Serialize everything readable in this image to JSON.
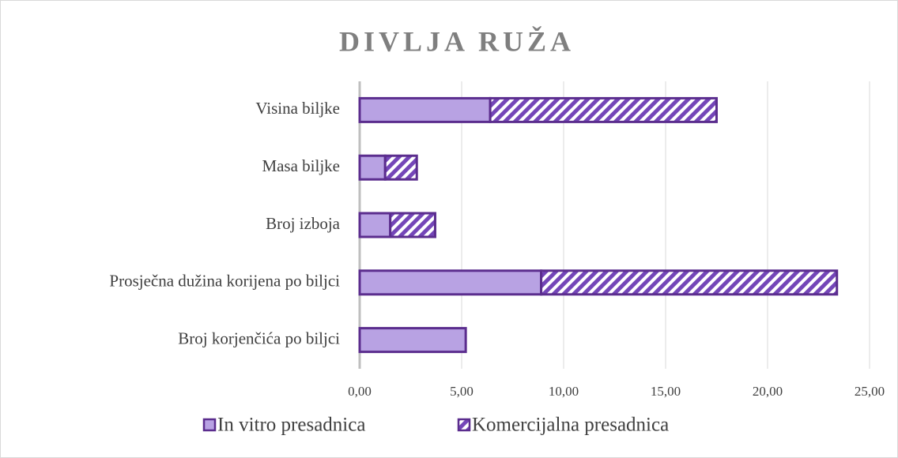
{
  "chart_data": {
    "type": "stacked_barh",
    "title": "DIVLJA RUŽA",
    "categories": [
      "Visina biljke",
      "Masa biljke",
      "Broj izboja",
      "Prosječna dužina korijena po biljci",
      "Broj korjenčića po biljci"
    ],
    "series": [
      {
        "name": "In vitro presadnica",
        "color": "#b8a2e3",
        "values": [
          6.4,
          1.25,
          1.5,
          8.9,
          5.2
        ]
      },
      {
        "name": "Komercijalna presadnica",
        "color": "#7446b8",
        "values": [
          11.1,
          1.55,
          2.2,
          14.5,
          0
        ]
      }
    ],
    "xlim": [
      0,
      25
    ],
    "xticks": [
      {
        "value": 0,
        "label": "0,00"
      },
      {
        "value": 5,
        "label": "5,00"
      },
      {
        "value": 10,
        "label": "10,00"
      },
      {
        "value": 15,
        "label": "15,00"
      },
      {
        "value": 20,
        "label": "20,00"
      },
      {
        "value": 25,
        "label": "25,00"
      }
    ],
    "grid": true,
    "legend": "bottom"
  }
}
